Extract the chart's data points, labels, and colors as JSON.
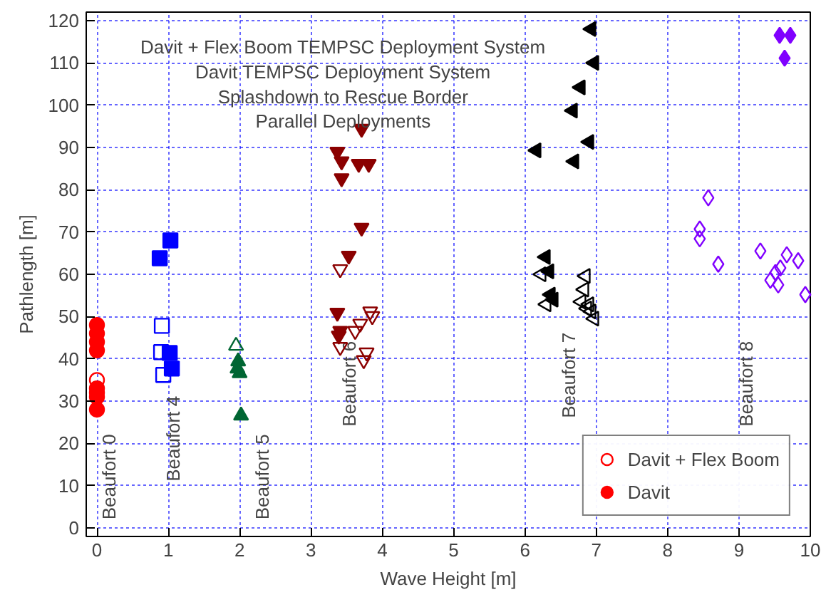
{
  "chart_data": {
    "type": "scatter",
    "xlabel": "Wave Height [m]",
    "ylabel": "Pathlength [m]",
    "xlim": [
      -0.15,
      10
    ],
    "ylim": [
      -2,
      122
    ],
    "xticks": [
      0,
      1,
      2,
      3,
      4,
      5,
      6,
      7,
      8,
      9,
      10
    ],
    "yticks": [
      0,
      10,
      20,
      30,
      40,
      50,
      60,
      70,
      80,
      90,
      100,
      110,
      120
    ],
    "grid": true,
    "legend": "bottom right",
    "annotations": [
      "Davit + Flex Boom TEMPSC Deployment System",
      "Davit TEMPSC Deployment System",
      "Splashdown to Rescue Border",
      "Parallel Deployments",
      "Beaufort 0",
      "Beaufort 4",
      "Beaufort 5",
      "Beaufort 6",
      "Beaufort 7",
      "Beaufort 8"
    ],
    "series": [
      {
        "name": "Davit + Flex Boom",
        "color": "#ff0000",
        "marker": "circle",
        "x": [
          0,
          0
        ],
        "values": [
          35,
          32
        ]
      },
      {
        "color": "#0000ff",
        "marker": "square",
        "x": [
          0.91,
          0.9,
          0.93
        ],
        "values": [
          47.8,
          41.6,
          36.2
        ]
      },
      {
        "color": "#006633",
        "marker": "triangle",
        "x": [
          1.95
        ],
        "values": [
          43.1
        ]
      },
      {
        "color": "#8b0000",
        "marker": "triangle",
        "x": [
          3.41,
          3.83,
          3.86,
          3.69,
          3.62,
          3.41,
          3.78,
          3.74
        ],
        "values": [
          61.2,
          51.2,
          50.1,
          48.3,
          46.6,
          42.8,
          41.5,
          39.7
        ]
      },
      {
        "color": "#000000",
        "marker": "triangle",
        "x": [
          6.23,
          6.3,
          6.85,
          6.83,
          6.79,
          6.9,
          6.93,
          6.97,
          6.87
        ],
        "values": [
          60.0,
          52.9,
          59.6,
          56.4,
          53.5,
          52.9,
          51.2,
          49.5,
          51.9
        ]
      },
      {
        "color": "#8000ff",
        "marker": "diamond",
        "x": [
          8.57,
          8.45,
          8.45,
          8.71,
          9.3,
          9.67,
          9.83,
          9.58,
          9.51,
          9.44,
          9.55,
          9.93
        ],
        "values": [
          78.1,
          70.7,
          68.4,
          62.4,
          65.5,
          64.6,
          63.2,
          61.5,
          60.4,
          58.6,
          57.5,
          55.2
        ]
      },
      {
        "name": "Davit",
        "color": "#ff0000",
        "marker": "circle",
        "x": [
          0,
          0,
          0,
          0,
          0,
          0,
          0
        ],
        "values": [
          48,
          46,
          44,
          42,
          33,
          31,
          28
        ]
      },
      {
        "color": "#0000ff",
        "marker": "square",
        "x": [
          0.88,
          1.03,
          1.02,
          1.05
        ],
        "values": [
          63.8,
          68,
          41.4,
          37.7
        ]
      },
      {
        "color": "#006633",
        "marker": "triangle",
        "x": [
          1.98,
          1.97,
          2.0,
          2.02
        ],
        "values": [
          39.4,
          37.7,
          36.6,
          26.6
        ]
      },
      {
        "color": "#8b0000",
        "marker": "triangle",
        "x": [
          3.71,
          3.37,
          3.43,
          3.67,
          3.81,
          3.43,
          3.71,
          3.53,
          3.37,
          3.41,
          3.39
        ],
        "values": [
          94.4,
          89.0,
          86.7,
          86.1,
          86.1,
          82.7,
          71.0,
          64.4,
          50.9,
          46.6,
          45.5
        ]
      },
      {
        "color": "#000000",
        "marker": "triangle",
        "x": [
          6.93,
          6.97,
          6.78,
          6.67,
          6.9,
          6.16,
          6.69,
          6.29,
          6.34,
          6.36,
          6.4
        ],
        "values": [
          118.0,
          110.0,
          104.2,
          98.7,
          91.3,
          89.3,
          86.7,
          64.1,
          60.7,
          55.2,
          54.0
        ]
      },
      {
        "color": "#8000ff",
        "marker": "diamond",
        "x": [
          9.57,
          9.72,
          9.64
        ],
        "values": [
          116.5,
          116.5,
          111.1
        ]
      }
    ]
  }
}
